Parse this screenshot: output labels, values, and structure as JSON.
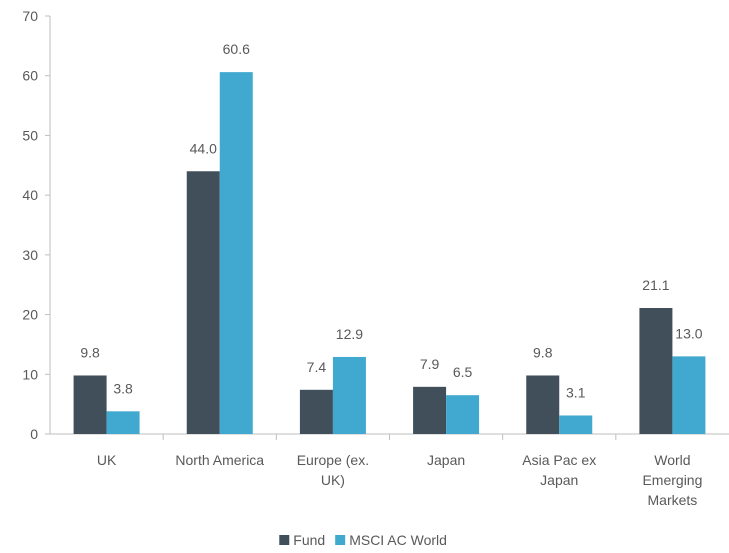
{
  "chart_data": {
    "type": "bar",
    "categories": [
      [
        "UK"
      ],
      [
        "North America"
      ],
      [
        "Europe (ex.",
        "UK)"
      ],
      [
        "Japan"
      ],
      [
        "Asia Pac ex",
        "Japan"
      ],
      [
        "World",
        "Emerging",
        "Markets"
      ]
    ],
    "series": [
      {
        "name": "Fund",
        "color": "#404f5a",
        "values": [
          9.8,
          44.0,
          7.4,
          7.9,
          9.8,
          21.1
        ]
      },
      {
        "name": "MSCI AC World",
        "color": "#41a9cf",
        "values": [
          3.8,
          60.6,
          12.9,
          6.5,
          3.1,
          13.0
        ]
      }
    ],
    "ylim": [
      0,
      70
    ],
    "yticks": [
      0,
      10,
      20,
      30,
      40,
      50,
      60,
      70
    ],
    "legend_position": "bottom-center",
    "grid": false
  }
}
